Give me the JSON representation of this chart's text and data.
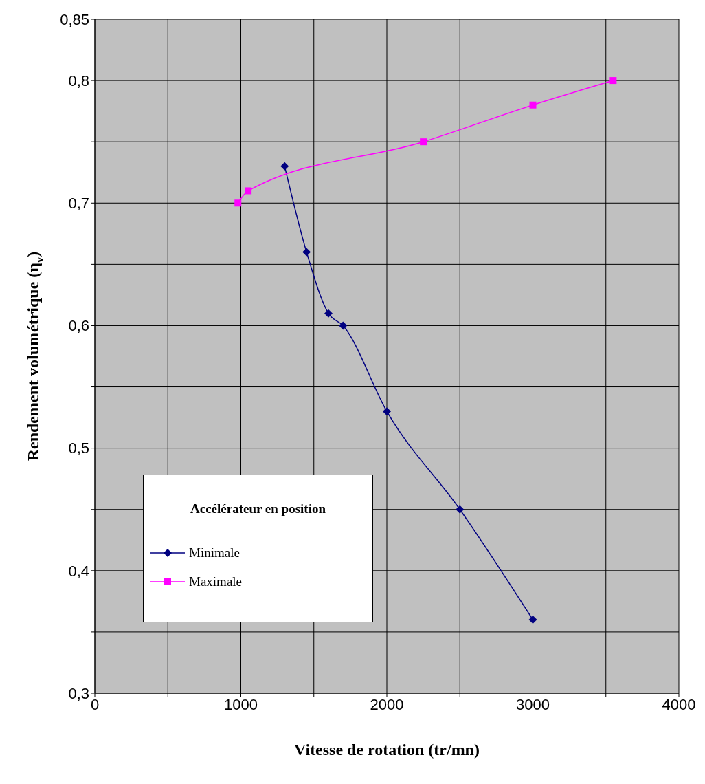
{
  "chart_data": {
    "type": "line",
    "xlabel": "Vitesse de rotation (tr/mn)",
    "ylabel": "Rendement volumétrique (η$_{v}$)",
    "legend_title": "Accélérateur en position",
    "legend": "bottom left",
    "grid": true,
    "line_style": "solid",
    "xlim": [
      0,
      4000
    ],
    "xticks": [
      0,
      {
        "value": 500,
        "label": null
      },
      1000,
      {
        "value": 1500,
        "label": null
      },
      2000,
      {
        "value": 2500,
        "label": null
      },
      3000,
      {
        "value": 3500,
        "label": null
      },
      4000
    ],
    "ylim": [
      0.3,
      0.85
    ],
    "yticks": [
      {
        "value": 0.3,
        "label": "0,3"
      },
      {
        "value": 0.35,
        "label": null
      },
      {
        "value": 0.4,
        "label": "0,4"
      },
      {
        "value": 0.45,
        "label": null
      },
      {
        "value": 0.5,
        "label": "0,5"
      },
      {
        "value": 0.55,
        "label": null
      },
      {
        "value": 0.6,
        "label": "0,6"
      },
      {
        "value": 0.65,
        "label": null
      },
      {
        "value": 0.7,
        "label": "0,7"
      },
      {
        "value": 0.75,
        "label": null
      },
      {
        "value": 0.8,
        "label": "0,8"
      },
      {
        "value": 0.85,
        "label": "0,85"
      }
    ],
    "series": [
      {
        "name": "Minimale",
        "color": "#000080",
        "marker": "diamond",
        "x": [
          1300,
          1450,
          1600,
          1700,
          2000,
          2500,
          3000
        ],
        "values": [
          0.73,
          0.66,
          0.61,
          0.6,
          0.53,
          0.45,
          0.36
        ]
      },
      {
        "name": "Maximale",
        "color": "#ff00ff",
        "marker": "square",
        "x": [
          980,
          1050,
          2250,
          3000,
          3550
        ],
        "values": [
          0.7,
          0.71,
          0.75,
          0.78,
          0.8
        ]
      }
    ]
  }
}
